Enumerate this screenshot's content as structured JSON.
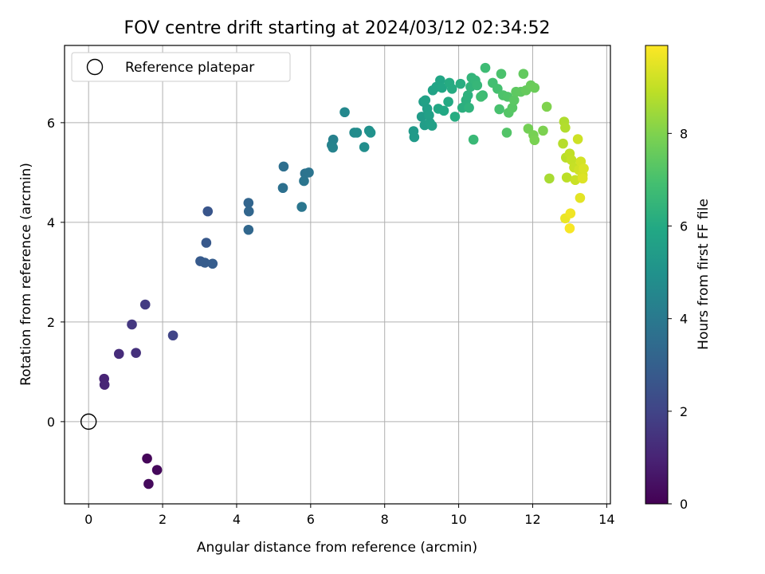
{
  "chart_data": {
    "type": "scatter",
    "title": "FOV centre drift starting at 2024/03/12 02:34:52",
    "xlabel": "Angular distance from reference (arcmin)",
    "ylabel": "Rotation from reference (arcmin)",
    "xlim": [
      -0.65,
      14.1
    ],
    "ylim": [
      -1.65,
      7.55
    ],
    "xticks": [
      0,
      2,
      4,
      6,
      8,
      10,
      12,
      14
    ],
    "yticks": [
      0,
      2,
      4,
      6
    ],
    "grid": true,
    "legend": {
      "placement": "top-left",
      "entries": [
        "Reference platepar"
      ]
    },
    "reference_point": {
      "x": 0,
      "y": 0,
      "marker": "open circle"
    },
    "colorbar": {
      "label": "Hours from first FF file",
      "colormap": "viridis",
      "range": [
        0,
        9.9
      ],
      "ticks": [
        0,
        2,
        4,
        6,
        8
      ]
    },
    "points": [
      [
        1.58,
        -0.74,
        0.15
      ],
      [
        1.85,
        -0.97,
        0.2
      ],
      [
        1.62,
        -1.25,
        0.25
      ],
      [
        0.42,
        0.86,
        1.0
      ],
      [
        0.43,
        0.74,
        1.05
      ],
      [
        0.82,
        1.36,
        1.25
      ],
      [
        1.28,
        1.38,
        1.4
      ],
      [
        1.17,
        1.95,
        1.6
      ],
      [
        1.53,
        2.35,
        1.7
      ],
      [
        2.28,
        1.73,
        2.0
      ],
      [
        3.22,
        4.22,
        2.6
      ],
      [
        3.18,
        3.59,
        2.7
      ],
      [
        3.02,
        3.22,
        2.8
      ],
      [
        3.14,
        3.19,
        2.85
      ],
      [
        3.35,
        3.17,
        2.9
      ],
      [
        4.32,
        4.39,
        3.2
      ],
      [
        4.33,
        4.22,
        3.25
      ],
      [
        4.32,
        3.85,
        3.3
      ],
      [
        5.27,
        5.12,
        3.6
      ],
      [
        5.25,
        4.69,
        3.65
      ],
      [
        5.85,
        4.98,
        3.75
      ],
      [
        5.95,
        5.0,
        3.8
      ],
      [
        5.82,
        4.83,
        3.85
      ],
      [
        5.76,
        4.31,
        3.9
      ],
      [
        6.61,
        5.66,
        4.3
      ],
      [
        6.57,
        5.55,
        4.35
      ],
      [
        6.6,
        5.5,
        4.4
      ],
      [
        6.92,
        6.21,
        4.6
      ],
      [
        7.18,
        5.8,
        4.7
      ],
      [
        7.25,
        5.8,
        4.75
      ],
      [
        7.45,
        5.51,
        4.85
      ],
      [
        7.58,
        5.84,
        4.95
      ],
      [
        7.62,
        5.8,
        5.0
      ],
      [
        8.78,
        5.83,
        5.3
      ],
      [
        8.8,
        5.71,
        5.35
      ],
      [
        9.0,
        6.12,
        5.4
      ],
      [
        9.08,
        5.95,
        5.45
      ],
      [
        9.05,
        6.42,
        5.5
      ],
      [
        9.15,
        6.28,
        5.55
      ],
      [
        9.2,
        6.15,
        5.6
      ],
      [
        9.22,
        6.0,
        5.55
      ],
      [
        9.28,
        5.94,
        5.6
      ],
      [
        9.1,
        6.45,
        5.65
      ],
      [
        9.3,
        6.65,
        5.7
      ],
      [
        9.4,
        6.72,
        5.75
      ],
      [
        9.5,
        6.85,
        5.8
      ],
      [
        9.55,
        6.7,
        5.85
      ],
      [
        9.45,
        6.28,
        5.9
      ],
      [
        9.6,
        6.24,
        5.95
      ],
      [
        9.72,
        6.42,
        6.0
      ],
      [
        9.75,
        6.8,
        6.05
      ],
      [
        9.82,
        6.68,
        6.05
      ],
      [
        9.9,
        6.12,
        6.1
      ],
      [
        10.05,
        6.78,
        6.15
      ],
      [
        10.1,
        6.3,
        6.2
      ],
      [
        10.2,
        6.45,
        6.25
      ],
      [
        10.25,
        6.55,
        6.3
      ],
      [
        10.28,
        6.3,
        6.35
      ],
      [
        10.32,
        6.72,
        6.4
      ],
      [
        10.35,
        6.9,
        6.45
      ],
      [
        10.45,
        6.85,
        6.5
      ],
      [
        10.5,
        6.75,
        6.55
      ],
      [
        10.4,
        5.66,
        6.65
      ],
      [
        10.65,
        6.55,
        6.7
      ],
      [
        10.72,
        7.1,
        6.75
      ],
      [
        10.6,
        6.52,
        6.8
      ],
      [
        10.92,
        6.8,
        6.9
      ],
      [
        11.05,
        6.68,
        6.95
      ],
      [
        11.1,
        6.27,
        7.0
      ],
      [
        11.15,
        6.98,
        7.05
      ],
      [
        11.2,
        6.55,
        7.1
      ],
      [
        11.32,
        6.52,
        7.15
      ],
      [
        11.3,
        5.8,
        7.2
      ],
      [
        11.35,
        6.2,
        7.25
      ],
      [
        11.45,
        6.3,
        7.3
      ],
      [
        11.5,
        6.45,
        7.35
      ],
      [
        11.55,
        6.62,
        7.4
      ],
      [
        11.68,
        6.62,
        7.45
      ],
      [
        11.75,
        6.98,
        7.5
      ],
      [
        11.82,
        6.65,
        7.55
      ],
      [
        11.95,
        6.75,
        7.6
      ],
      [
        12.05,
        6.7,
        7.65
      ],
      [
        11.88,
        5.88,
        7.8
      ],
      [
        12.02,
        5.75,
        7.85
      ],
      [
        12.05,
        5.65,
        7.9
      ],
      [
        12.28,
        5.84,
        7.95
      ],
      [
        12.38,
        6.32,
        8.0
      ],
      [
        12.45,
        4.88,
        8.6
      ],
      [
        12.85,
        6.02,
        8.7
      ],
      [
        12.88,
        5.9,
        8.75
      ],
      [
        12.82,
        5.58,
        8.8
      ],
      [
        12.9,
        5.3,
        8.85
      ],
      [
        12.92,
        4.9,
        8.9
      ],
      [
        13.0,
        5.38,
        8.95
      ],
      [
        13.05,
        5.25,
        9.0
      ],
      [
        13.12,
        5.1,
        9.05
      ],
      [
        13.15,
        4.85,
        9.1
      ],
      [
        13.22,
        5.67,
        9.15
      ],
      [
        13.25,
        5.05,
        9.2
      ],
      [
        13.3,
        5.22,
        9.25
      ],
      [
        13.35,
        4.95,
        9.3
      ],
      [
        13.38,
        5.08,
        9.35
      ],
      [
        13.35,
        4.88,
        9.4
      ],
      [
        13.28,
        4.49,
        9.5
      ],
      [
        12.88,
        4.08,
        9.6
      ],
      [
        13.02,
        4.18,
        9.7
      ],
      [
        13.0,
        3.88,
        9.8
      ]
    ]
  }
}
